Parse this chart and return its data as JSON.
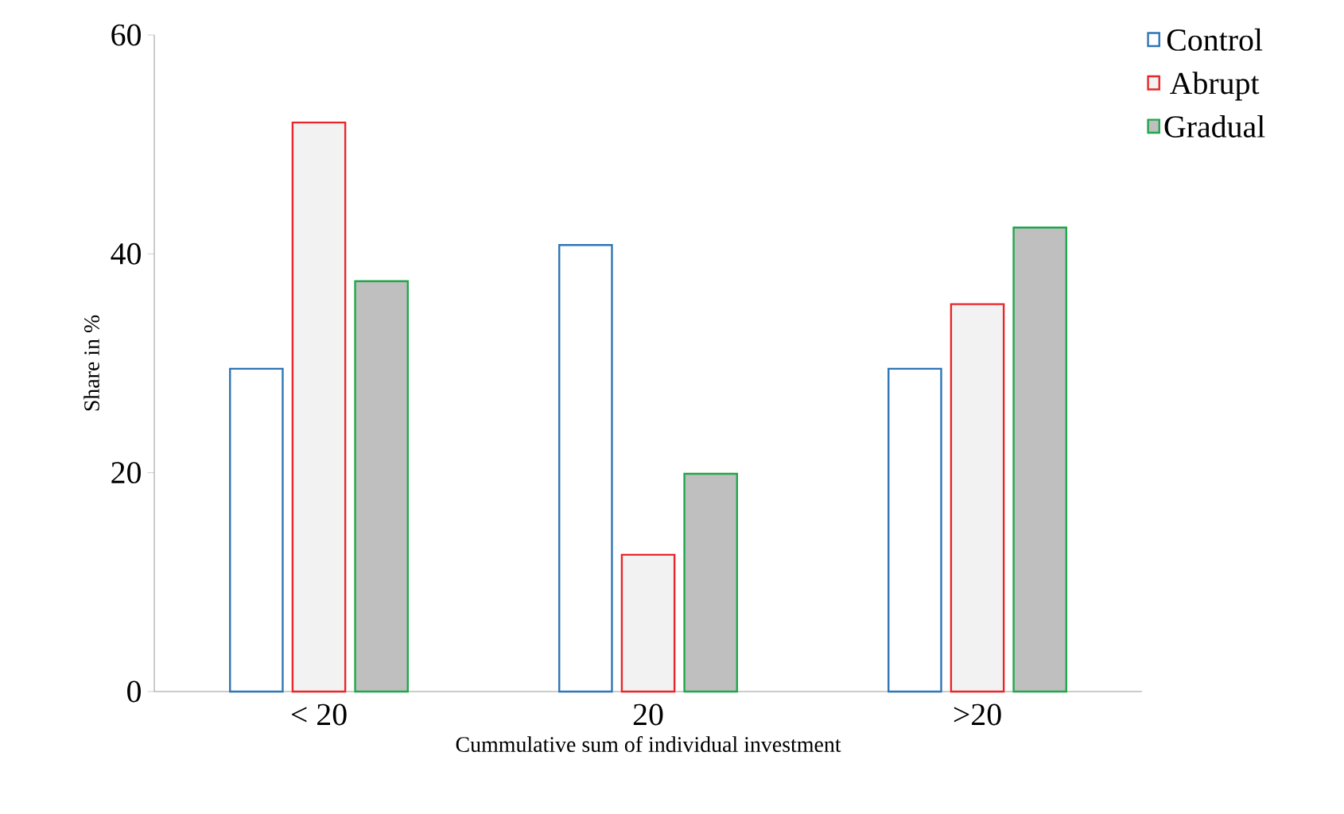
{
  "chart_data": {
    "type": "bar",
    "xlabel": "Cummulative sum of  individual investment",
    "ylabel": "Share in %",
    "categories": [
      "< 20",
      "20",
      ">20"
    ],
    "series": [
      {
        "name": "Control",
        "color": "#2e75b6",
        "values": [
          29.5,
          40.8,
          29.5
        ]
      },
      {
        "name": "Abrupt",
        "color": "#e8262a",
        "values": [
          52.0,
          12.5,
          35.4
        ]
      },
      {
        "name": "Gradual",
        "color": "#1fa84a",
        "values": [
          37.5,
          19.9,
          42.4
        ]
      }
    ],
    "ylim": [
      0,
      60
    ],
    "yticks": [
      0,
      20,
      40,
      60
    ],
    "grid": false,
    "legend": "right"
  }
}
